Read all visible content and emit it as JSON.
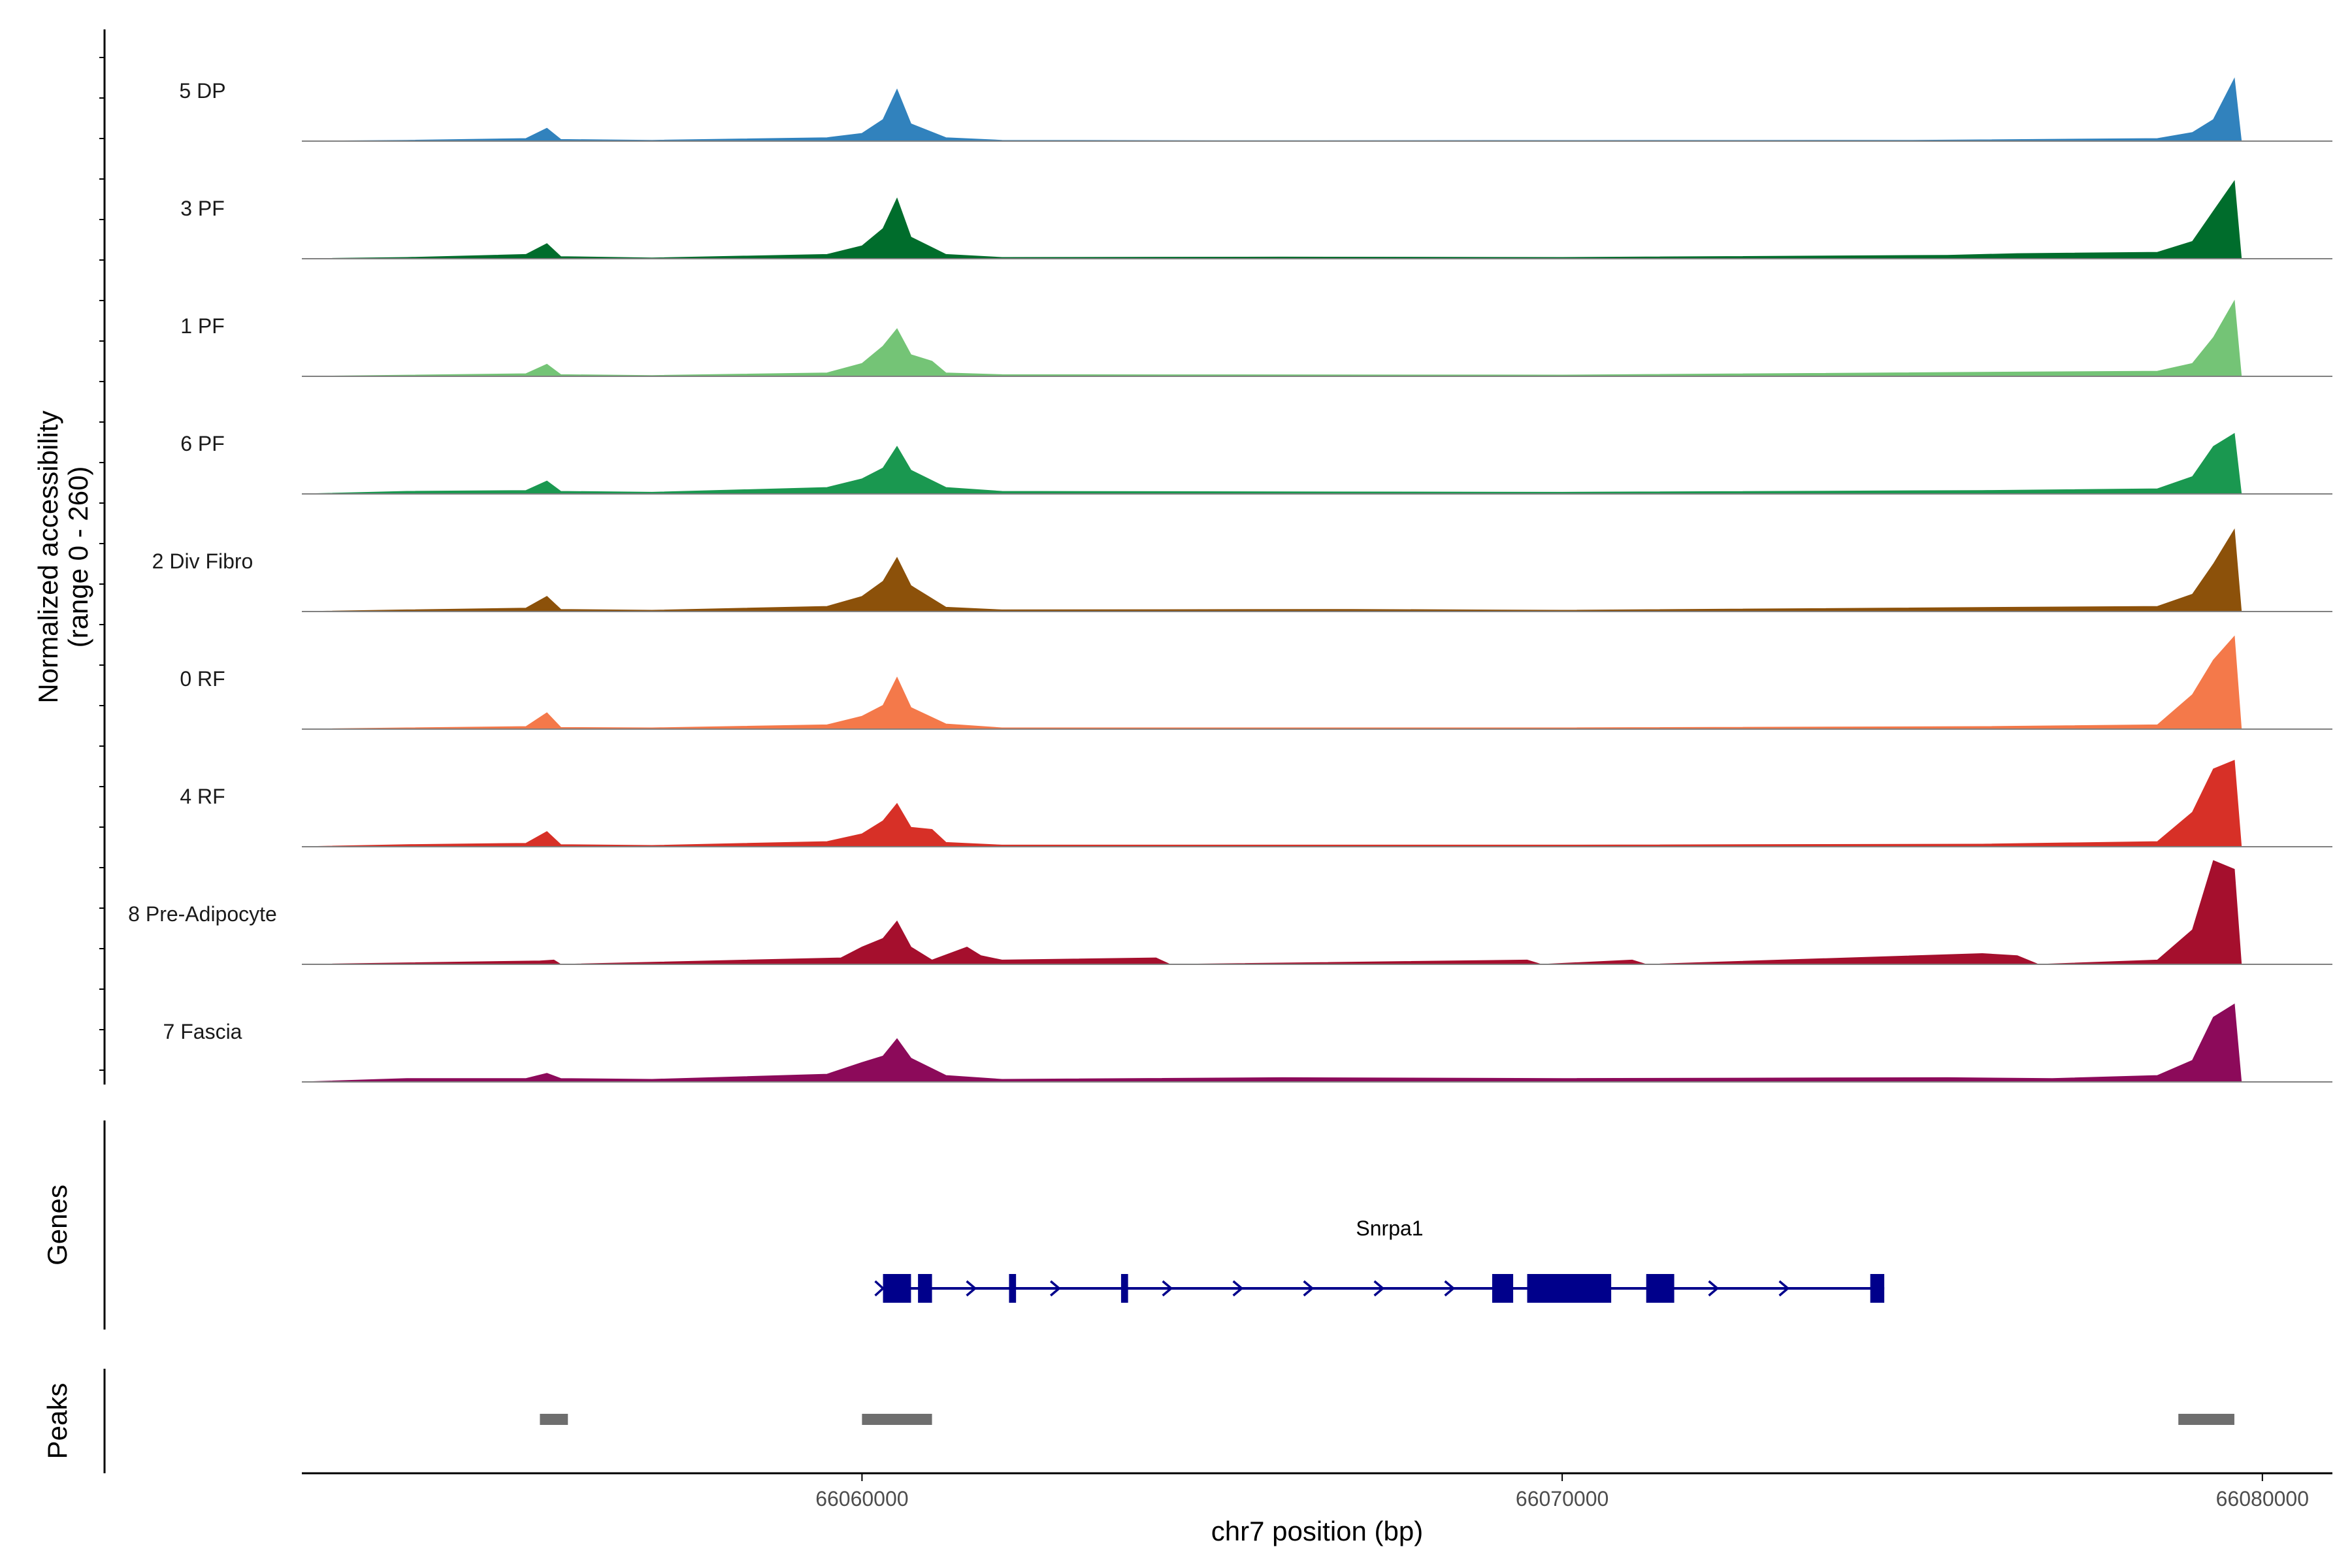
{
  "chart_data": {
    "type": "area",
    "x_unit": "bp",
    "xlabel": "chr7 position (bp)",
    "ylabel": "Normalized accessibility\n(range 0 - 260)",
    "y_range": [
      0,
      260
    ],
    "xlim": [
      66052000,
      66081000
    ],
    "x_ticks": [
      66060000,
      66070000,
      66080000
    ],
    "x_tick_labels": [
      "66060000",
      "66070000",
      "66080000"
    ],
    "grid": false,
    "legend": "none",
    "series": [
      {
        "name": "5 DP",
        "color": "#3182BD",
        "points": [
          [
            66052000,
            0
          ],
          [
            66053500,
            2
          ],
          [
            66055200,
            6
          ],
          [
            66055500,
            30
          ],
          [
            66055700,
            4
          ],
          [
            66057000,
            2
          ],
          [
            66059500,
            8
          ],
          [
            66060000,
            18
          ],
          [
            66060300,
            50
          ],
          [
            66060500,
            120
          ],
          [
            66060700,
            40
          ],
          [
            66061200,
            8
          ],
          [
            66062000,
            2
          ],
          [
            66065000,
            1
          ],
          [
            66075000,
            2
          ],
          [
            66078500,
            6
          ],
          [
            66079000,
            20
          ],
          [
            66079300,
            50
          ],
          [
            66079600,
            145
          ],
          [
            66079700,
            0
          ]
        ]
      },
      {
        "name": "3 PF",
        "color": "#006D2C",
        "points": [
          [
            66052000,
            0
          ],
          [
            66053500,
            3
          ],
          [
            66055200,
            10
          ],
          [
            66055500,
            35
          ],
          [
            66055700,
            5
          ],
          [
            66057000,
            2
          ],
          [
            66059500,
            10
          ],
          [
            66060000,
            30
          ],
          [
            66060300,
            70
          ],
          [
            66060500,
            140
          ],
          [
            66060700,
            50
          ],
          [
            66061200,
            10
          ],
          [
            66062000,
            3
          ],
          [
            66066000,
            4
          ],
          [
            66070000,
            3
          ],
          [
            66075500,
            8
          ],
          [
            66076500,
            12
          ],
          [
            66078500,
            15
          ],
          [
            66079000,
            40
          ],
          [
            66079300,
            110
          ],
          [
            66079600,
            180
          ],
          [
            66079700,
            0
          ]
        ]
      },
      {
        "name": "1 PF",
        "color": "#74C476",
        "points": [
          [
            66052000,
            0
          ],
          [
            66055200,
            6
          ],
          [
            66055500,
            28
          ],
          [
            66055700,
            4
          ],
          [
            66057000,
            2
          ],
          [
            66059500,
            8
          ],
          [
            66060000,
            30
          ],
          [
            66060300,
            70
          ],
          [
            66060500,
            110
          ],
          [
            66060700,
            50
          ],
          [
            66061000,
            35
          ],
          [
            66061200,
            8
          ],
          [
            66062000,
            4
          ],
          [
            66070000,
            3
          ],
          [
            66076500,
            10
          ],
          [
            66078500,
            12
          ],
          [
            66079000,
            30
          ],
          [
            66079300,
            90
          ],
          [
            66079600,
            175
          ],
          [
            66079700,
            0
          ]
        ]
      },
      {
        "name": "6 PF",
        "color": "#1A9850",
        "points": [
          [
            66052000,
            0
          ],
          [
            66053500,
            6
          ],
          [
            66055200,
            8
          ],
          [
            66055500,
            30
          ],
          [
            66055700,
            6
          ],
          [
            66057000,
            4
          ],
          [
            66059500,
            15
          ],
          [
            66060000,
            35
          ],
          [
            66060300,
            60
          ],
          [
            66060500,
            110
          ],
          [
            66060700,
            55
          ],
          [
            66061200,
            15
          ],
          [
            66062000,
            6
          ],
          [
            66070000,
            4
          ],
          [
            66076000,
            8
          ],
          [
            66078500,
            12
          ],
          [
            66079000,
            40
          ],
          [
            66079300,
            110
          ],
          [
            66079600,
            140
          ],
          [
            66079700,
            0
          ]
        ]
      },
      {
        "name": "2 Div Fibro",
        "color": "#8C510A",
        "points": [
          [
            66052000,
            0
          ],
          [
            66053500,
            4
          ],
          [
            66055200,
            8
          ],
          [
            66055500,
            35
          ],
          [
            66055700,
            5
          ],
          [
            66057000,
            3
          ],
          [
            66059500,
            12
          ],
          [
            66060000,
            35
          ],
          [
            66060300,
            70
          ],
          [
            66060500,
            125
          ],
          [
            66060700,
            60
          ],
          [
            66061200,
            10
          ],
          [
            66062000,
            4
          ],
          [
            66067000,
            5
          ],
          [
            66070000,
            3
          ],
          [
            66076500,
            10
          ],
          [
            66078500,
            12
          ],
          [
            66079000,
            40
          ],
          [
            66079300,
            110
          ],
          [
            66079600,
            190
          ],
          [
            66079700,
            0
          ]
        ]
      },
      {
        "name": "0 RF",
        "color": "#F4794A",
        "points": [
          [
            66052000,
            0
          ],
          [
            66053500,
            3
          ],
          [
            66055200,
            6
          ],
          [
            66055500,
            38
          ],
          [
            66055700,
            4
          ],
          [
            66057000,
            3
          ],
          [
            66059500,
            10
          ],
          [
            66060000,
            30
          ],
          [
            66060300,
            55
          ],
          [
            66060500,
            120
          ],
          [
            66060700,
            50
          ],
          [
            66061200,
            12
          ],
          [
            66062000,
            3
          ],
          [
            66070000,
            3
          ],
          [
            66076000,
            6
          ],
          [
            66078500,
            10
          ],
          [
            66079000,
            80
          ],
          [
            66079300,
            160
          ],
          [
            66079600,
            215
          ],
          [
            66079700,
            0
          ]
        ]
      },
      {
        "name": "4 RF",
        "color": "#D73027",
        "points": [
          [
            66052000,
            0
          ],
          [
            66053500,
            5
          ],
          [
            66055200,
            8
          ],
          [
            66055500,
            35
          ],
          [
            66055700,
            5
          ],
          [
            66057000,
            3
          ],
          [
            66059500,
            12
          ],
          [
            66060000,
            30
          ],
          [
            66060300,
            60
          ],
          [
            66060500,
            100
          ],
          [
            66060700,
            45
          ],
          [
            66061000,
            40
          ],
          [
            66061200,
            10
          ],
          [
            66062000,
            4
          ],
          [
            66070000,
            4
          ],
          [
            66076000,
            6
          ],
          [
            66078500,
            12
          ],
          [
            66079000,
            80
          ],
          [
            66079300,
            180
          ],
          [
            66079600,
            200
          ],
          [
            66079700,
            0
          ]
        ]
      },
      {
        "name": "8 Pre-Adipocyte",
        "color": "#A50F2D",
        "points": [
          [
            66052000,
            0
          ],
          [
            66055400,
            8
          ],
          [
            66055600,
            10
          ],
          [
            66055700,
            0
          ],
          [
            66059700,
            15
          ],
          [
            66060000,
            40
          ],
          [
            66060300,
            60
          ],
          [
            66060500,
            100
          ],
          [
            66060700,
            40
          ],
          [
            66061000,
            10
          ],
          [
            66061500,
            40
          ],
          [
            66061700,
            20
          ],
          [
            66062000,
            10
          ],
          [
            66064200,
            15
          ],
          [
            66064400,
            0
          ],
          [
            66069500,
            10
          ],
          [
            66069700,
            0
          ],
          [
            66071000,
            10
          ],
          [
            66071200,
            0
          ],
          [
            66076000,
            25
          ],
          [
            66076500,
            20
          ],
          [
            66076800,
            0
          ],
          [
            66078500,
            10
          ],
          [
            66079000,
            80
          ],
          [
            66079300,
            240
          ],
          [
            66079600,
            220
          ],
          [
            66079700,
            0
          ]
        ]
      },
      {
        "name": "7 Fascia",
        "color": "#8C0A5A",
        "points": [
          [
            66052000,
            0
          ],
          [
            66053500,
            8
          ],
          [
            66055200,
            8
          ],
          [
            66055500,
            20
          ],
          [
            66055700,
            8
          ],
          [
            66057000,
            6
          ],
          [
            66059500,
            18
          ],
          [
            66060000,
            45
          ],
          [
            66060300,
            60
          ],
          [
            66060500,
            100
          ],
          [
            66060700,
            55
          ],
          [
            66061200,
            15
          ],
          [
            66062000,
            6
          ],
          [
            66066000,
            10
          ],
          [
            66070000,
            8
          ],
          [
            66075500,
            10
          ],
          [
            66077000,
            8
          ],
          [
            66078500,
            15
          ],
          [
            66079000,
            50
          ],
          [
            66079300,
            150
          ],
          [
            66079600,
            180
          ],
          [
            66079700,
            0
          ]
        ]
      }
    ],
    "genes": [
      {
        "name": "Snrpa1",
        "strand": "+",
        "color": "#00008B",
        "start": 66060300,
        "end": 66074600,
        "exons": [
          [
            66060300,
            66060700
          ],
          [
            66060800,
            66061000
          ],
          [
            66062100,
            66062200
          ],
          [
            66063700,
            66063800
          ],
          [
            66069000,
            66069300
          ],
          [
            66069500,
            66070700
          ],
          [
            66071200,
            66071600
          ],
          [
            66074400,
            66074600
          ]
        ]
      }
    ],
    "peaks": [
      {
        "start": 66055400,
        "end": 66055800
      },
      {
        "start": 66060000,
        "end": 66061000
      },
      {
        "start": 66078800,
        "end": 66079600
      }
    ],
    "peak_color": "#6E6E6E",
    "panel_titles": {
      "genes": "Genes",
      "peaks": "Peaks"
    }
  }
}
